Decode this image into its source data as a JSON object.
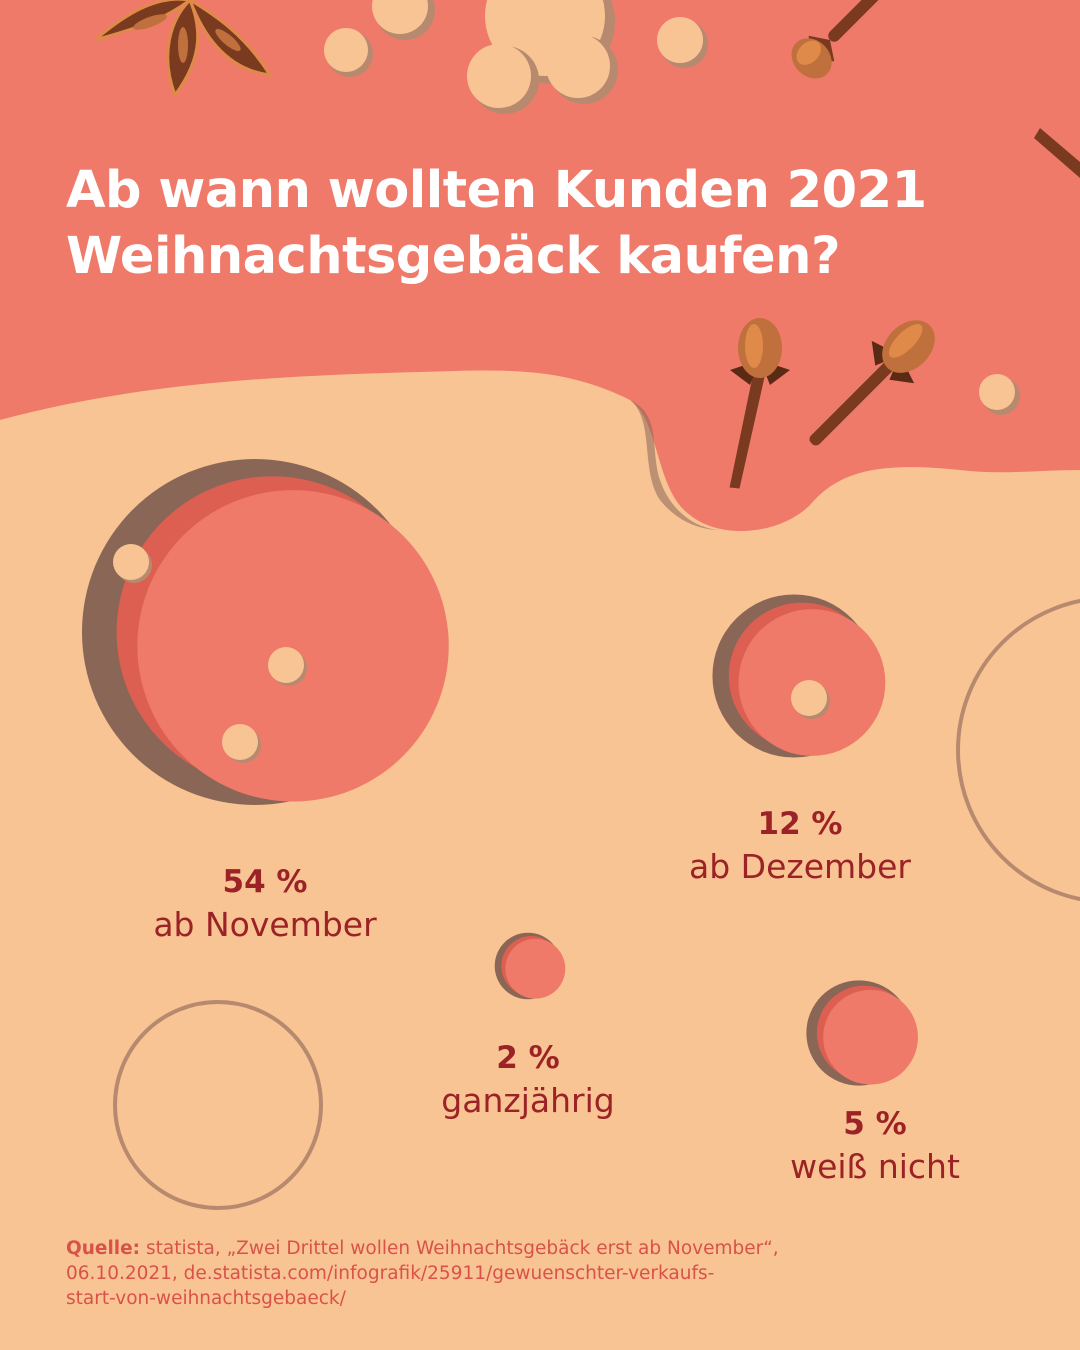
{
  "title": {
    "line1": "Ab wann wollten Kunden 2021",
    "line2": "Weihnachtsgebäck kaufen?"
  },
  "colors": {
    "background": "#f9c494",
    "header": "#ef7a6a",
    "accent": "#9b2226",
    "bubble_main": "#ef7a6a",
    "bubble_mid": "#dd5f52",
    "bubble_shadow": "#8a6656",
    "decor_dots": "#f9c494",
    "source_text": "#d9524a"
  },
  "chart_data": {
    "type": "bubble",
    "unit": "%",
    "categories": [
      "ab November",
      "ab Dezember",
      "ganzjährig",
      "weiß nicht"
    ],
    "values": [
      54,
      12,
      2,
      5
    ],
    "labels": [
      "54 %",
      "12 %",
      "2 %",
      "5 %"
    ]
  },
  "source": {
    "label": "Quelle:",
    "line1": "statista, „Zwei Drittel wollen Weihnachtsgebäck erst ab November“,",
    "line2": "06.10.2021, de.statista.com/infografik/25911/gewuenschter-verkaufs-",
    "line3": "start-von-weihnachtsgebaeck/"
  },
  "decorations": [
    "star-anise-icon",
    "clove-icon",
    "cinnamon-stick-icon",
    "dough-ball-icon"
  ]
}
